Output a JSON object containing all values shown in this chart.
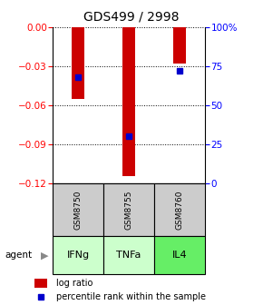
{
  "title": "GDS499 / 2998",
  "samples": [
    "GSM8750",
    "GSM8755",
    "GSM8760"
  ],
  "agents": [
    "IFNg",
    "TNFa",
    "IL4"
  ],
  "log_ratio": [
    -0.055,
    -0.115,
    -0.028
  ],
  "percentile_rank": [
    68,
    30,
    72
  ],
  "ylim_left": [
    -0.12,
    0
  ],
  "ylim_right": [
    0,
    100
  ],
  "yticks_left": [
    0,
    -0.03,
    -0.06,
    -0.09,
    -0.12
  ],
  "yticks_right": [
    0,
    25,
    50,
    75,
    100
  ],
  "ytick_labels_right": [
    "0",
    "25",
    "50",
    "75",
    "100%"
  ],
  "bar_color": "#cc0000",
  "dot_color": "#0000cc",
  "agent_colors": [
    "#ccffcc",
    "#ccffcc",
    "#66ee66"
  ],
  "sample_bg": "#cccccc",
  "legend_bar_label": "log ratio",
  "legend_dot_label": "percentile rank within the sample",
  "agent_label": "agent",
  "title_fontsize": 10,
  "tick_fontsize": 7.5,
  "legend_fontsize": 7
}
